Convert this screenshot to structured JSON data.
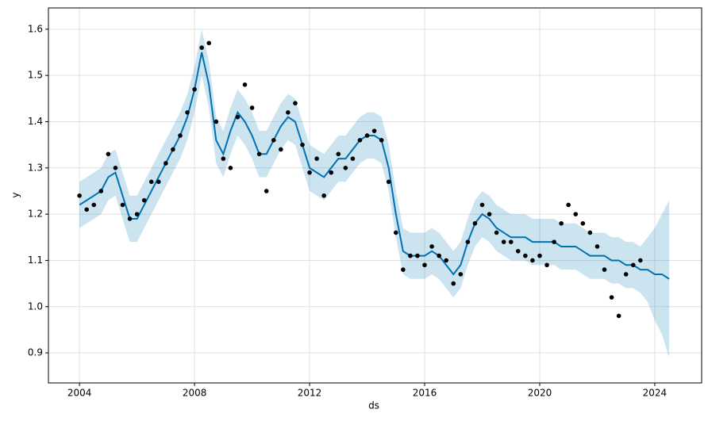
{
  "chart_data": {
    "type": "forecast",
    "xlabel": "ds",
    "ylabel": "y",
    "xlim": [
      2002.92,
      2025.63
    ],
    "xticks": [
      2004,
      2008,
      2012,
      2016,
      2020,
      2024
    ],
    "ylim": [
      0.835,
      1.646
    ],
    "yticks": [
      0.9,
      {
        "value": 1,
        "label": "1.0"
      },
      1.1,
      1.2,
      1.3,
      1.4,
      1.5,
      1.6
    ],
    "grid": true,
    "x": [
      2004,
      2004.25,
      2004.5,
      2004.75,
      2005,
      2005.25,
      2005.5,
      2005.75,
      2006,
      2006.25,
      2006.5,
      2006.75,
      2007,
      2007.25,
      2007.5,
      2007.75,
      2008,
      2008.25,
      2008.5,
      2008.75,
      2009,
      2009.25,
      2009.5,
      2009.75,
      2010,
      2010.25,
      2010.5,
      2010.75,
      2011,
      2011.25,
      2011.5,
      2011.75,
      2012,
      2012.25,
      2012.5,
      2012.75,
      2013,
      2013.25,
      2013.5,
      2013.75,
      2014,
      2014.25,
      2014.5,
      2014.75,
      2015,
      2015.25,
      2015.5,
      2015.75,
      2016,
      2016.25,
      2016.5,
      2016.75,
      2017,
      2017.25,
      2017.5,
      2017.75,
      2018,
      2018.25,
      2018.5,
      2018.75,
      2019,
      2019.25,
      2019.5,
      2019.75,
      2020,
      2020.25,
      2020.5,
      2020.75,
      2021,
      2021.25,
      2021.5,
      2021.75,
      2022,
      2022.25,
      2022.5,
      2022.75,
      2023,
      2023.25,
      2023.5,
      2023.75,
      2024,
      2024.25,
      2024.5
    ],
    "observed": {
      "color": "#000000",
      "values": [
        1.24,
        1.21,
        1.22,
        1.25,
        1.33,
        1.3,
        1.22,
        1.19,
        1.2,
        1.23,
        1.27,
        1.27,
        1.31,
        1.34,
        1.37,
        1.42,
        1.47,
        1.56,
        1.57,
        1.4,
        1.32,
        1.3,
        1.41,
        1.48,
        1.43,
        1.33,
        1.25,
        1.36,
        1.34,
        1.42,
        1.44,
        1.35,
        1.29,
        1.32,
        1.24,
        1.29,
        1.33,
        1.3,
        1.32,
        1.36,
        1.37,
        1.38,
        1.36,
        1.27,
        1.16,
        1.08,
        1.11,
        1.11,
        1.09,
        1.13,
        1.11,
        1.1,
        1.05,
        1.07,
        1.14,
        1.18,
        1.22,
        1.2,
        1.16,
        1.14,
        1.14,
        1.12,
        1.11,
        1.1,
        1.11,
        1.09,
        1.14,
        1.18,
        1.22,
        1.2,
        1.18,
        1.16,
        1.13,
        1.08,
        1.02,
        0.98,
        1.07,
        1.09,
        1.1,
        null,
        null,
        null,
        null
      ]
    },
    "forecast": {
      "color": "#0072B2",
      "values": [
        1.22,
        1.23,
        1.24,
        1.25,
        1.28,
        1.29,
        1.24,
        1.19,
        1.19,
        1.22,
        1.25,
        1.28,
        1.31,
        1.34,
        1.37,
        1.41,
        1.47,
        1.55,
        1.48,
        1.36,
        1.33,
        1.38,
        1.42,
        1.4,
        1.37,
        1.33,
        1.33,
        1.36,
        1.39,
        1.41,
        1.4,
        1.35,
        1.3,
        1.29,
        1.28,
        1.3,
        1.32,
        1.32,
        1.34,
        1.36,
        1.37,
        1.37,
        1.36,
        1.3,
        1.2,
        1.12,
        1.11,
        1.11,
        1.11,
        1.12,
        1.11,
        1.09,
        1.07,
        1.09,
        1.14,
        1.18,
        1.2,
        1.19,
        1.17,
        1.16,
        1.15,
        1.15,
        1.15,
        1.14,
        1.14,
        1.14,
        1.14,
        1.13,
        1.13,
        1.13,
        1.12,
        1.11,
        1.11,
        1.11,
        1.1,
        1.1,
        1.09,
        1.09,
        1.08,
        1.08,
        1.07,
        1.07,
        1.06
      ]
    },
    "interval": {
      "color": "#0072B2",
      "lower": [
        1.17,
        1.18,
        1.19,
        1.2,
        1.23,
        1.24,
        1.19,
        1.14,
        1.14,
        1.17,
        1.2,
        1.23,
        1.26,
        1.29,
        1.32,
        1.36,
        1.42,
        1.5,
        1.43,
        1.31,
        1.28,
        1.33,
        1.37,
        1.35,
        1.32,
        1.28,
        1.28,
        1.31,
        1.34,
        1.36,
        1.35,
        1.3,
        1.25,
        1.24,
        1.23,
        1.25,
        1.27,
        1.27,
        1.29,
        1.31,
        1.32,
        1.32,
        1.31,
        1.25,
        1.15,
        1.07,
        1.06,
        1.06,
        1.06,
        1.07,
        1.06,
        1.04,
        1.02,
        1.04,
        1.09,
        1.13,
        1.15,
        1.14,
        1.12,
        1.11,
        1.1,
        1.1,
        1.1,
        1.09,
        1.09,
        1.09,
        1.09,
        1.08,
        1.08,
        1.08,
        1.07,
        1.06,
        1.06,
        1.06,
        1.05,
        1.05,
        1.04,
        1.04,
        1.03,
        1.01,
        0.97,
        0.94,
        0.89
      ],
      "upper": [
        1.27,
        1.28,
        1.29,
        1.3,
        1.33,
        1.34,
        1.29,
        1.24,
        1.24,
        1.27,
        1.3,
        1.33,
        1.36,
        1.39,
        1.42,
        1.46,
        1.52,
        1.6,
        1.53,
        1.41,
        1.38,
        1.43,
        1.47,
        1.45,
        1.42,
        1.38,
        1.38,
        1.41,
        1.44,
        1.46,
        1.45,
        1.4,
        1.35,
        1.34,
        1.33,
        1.35,
        1.37,
        1.37,
        1.39,
        1.41,
        1.42,
        1.42,
        1.41,
        1.35,
        1.25,
        1.17,
        1.16,
        1.16,
        1.16,
        1.17,
        1.16,
        1.14,
        1.12,
        1.14,
        1.19,
        1.23,
        1.25,
        1.24,
        1.22,
        1.21,
        1.2,
        1.2,
        1.2,
        1.19,
        1.19,
        1.19,
        1.19,
        1.18,
        1.18,
        1.18,
        1.17,
        1.16,
        1.16,
        1.16,
        1.15,
        1.15,
        1.14,
        1.14,
        1.13,
        1.15,
        1.17,
        1.2,
        1.23
      ]
    }
  }
}
